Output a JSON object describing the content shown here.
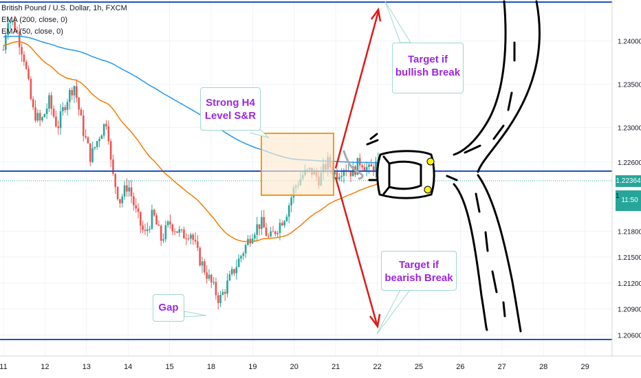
{
  "legend": {
    "symbol": "British Pound / U.S. Dollar, 1h, FXCM",
    "ema200": "EMA (200, close, 0)",
    "ema50": "EMA (50, close, 0)"
  },
  "callouts": {
    "level": "Strong H4 Level S&R",
    "bull": "Target if bullish Break",
    "bear": "Target if bearish Break",
    "gap": "Gap"
  },
  "price_tags": {
    "current": "1.22364",
    "countdown": "11:50",
    "hidden_partial": "1"
  },
  "colors": {
    "background": "#ffffff",
    "up_candle": "#26a69a",
    "down_candle": "#ef5350",
    "ema200": "#2196f3",
    "ema50": "#f57c00",
    "level_line": "#1e50c8",
    "current_price": "#26a69a",
    "callout_text": "#9c27e0",
    "box_fill": "#fde9d0",
    "box_border": "#f09a1e",
    "arrow": "#e01818"
  },
  "chart_data": {
    "type": "candlestick",
    "title": "British Pound / U.S. Dollar, 1h, FXCM",
    "ylim": [
      1.205,
      1.2445
    ],
    "y_ticks": [
      "1.24000",
      "1.23500",
      "1.23000",
      "1.22600",
      "1.22364",
      "1.21800",
      "1.21500",
      "1.21200",
      "1.20900",
      "1.20600"
    ],
    "x_ticks": [
      "11",
      "12",
      "13",
      "14",
      "15",
      "18",
      "19",
      "20",
      "21",
      "22",
      "25",
      "26",
      "27",
      "28",
      "29"
    ],
    "indicators": [
      {
        "name": "EMA (200, close, 0)",
        "color": "#2196f3"
      },
      {
        "name": "EMA (50, close, 0)",
        "color": "#f57c00"
      }
    ],
    "horizontal_levels": [
      1.2433,
      1.2248,
      1.2067
    ],
    "current_price": 1.22364,
    "consolidation_box": {
      "x_start": 19.3,
      "x_end": 20.9,
      "y_low": 1.2219,
      "y_high": 1.2288
    },
    "targets": {
      "bullish": 1.2433,
      "bearish": 1.2067
    },
    "candle_path": [
      [
        10.9,
        1.239
      ],
      [
        11.0,
        1.2428
      ],
      [
        11.2,
        1.2415
      ],
      [
        11.4,
        1.238
      ],
      [
        11.6,
        1.232
      ],
      [
        11.8,
        1.2305
      ],
      [
        12.0,
        1.233
      ],
      [
        12.2,
        1.23
      ],
      [
        12.4,
        1.233
      ],
      [
        12.6,
        1.235
      ],
      [
        12.8,
        1.23
      ],
      [
        13.0,
        1.2265
      ],
      [
        13.2,
        1.229
      ],
      [
        13.4,
        1.231
      ],
      [
        13.5,
        1.225
      ],
      [
        13.7,
        1.2215
      ],
      [
        13.9,
        1.2235
      ],
      [
        14.1,
        1.22
      ],
      [
        14.3,
        1.2175
      ],
      [
        14.5,
        1.22
      ],
      [
        14.7,
        1.217
      ],
      [
        14.9,
        1.219
      ],
      [
        15.2,
        1.2175
      ],
      [
        15.4,
        1.218
      ],
      [
        15.6,
        1.215
      ],
      [
        15.8,
        1.213
      ],
      [
        16.0,
        1.211
      ],
      [
        16.1,
        1.21
      ],
      [
        16.3,
        1.212
      ],
      [
        16.5,
        1.214
      ],
      [
        16.7,
        1.216
      ],
      [
        16.9,
        1.218
      ],
      [
        17.1,
        1.219
      ],
      [
        17.3,
        1.217
      ],
      [
        17.5,
        1.2185
      ],
      [
        17.7,
        1.22
      ],
      [
        17.9,
        1.223
      ],
      [
        18.1,
        1.2245
      ],
      [
        18.3,
        1.225
      ],
      [
        18.5,
        1.224
      ],
      [
        18.7,
        1.226
      ],
      [
        18.9,
        1.2245
      ],
      [
        19.1,
        1.2255
      ],
      [
        19.3,
        1.2248
      ],
      [
        19.5,
        1.2262
      ],
      [
        19.7,
        1.225
      ],
      [
        19.9,
        1.2258
      ],
      [
        20.0,
        1.2245
      ],
      [
        20.2,
        1.2255
      ],
      [
        20.4,
        1.224
      ],
      [
        20.6,
        1.2252
      ],
      [
        20.7,
        1.2236
      ]
    ]
  }
}
